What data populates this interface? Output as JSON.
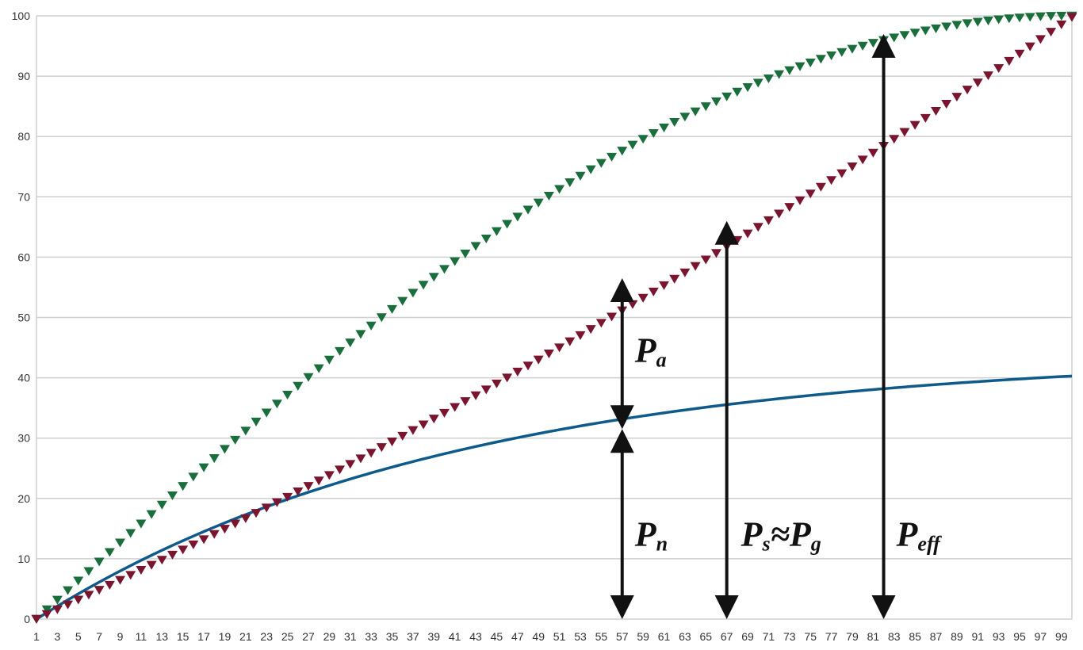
{
  "chart_data": {
    "type": "line",
    "x": [
      1,
      100
    ],
    "x_tick_labels": [
      "1",
      "3",
      "5",
      "7",
      "9",
      "11",
      "13",
      "15",
      "17",
      "19",
      "21",
      "23",
      "25",
      "27",
      "29",
      "31",
      "33",
      "35",
      "37",
      "39",
      "41",
      "43",
      "45",
      "47",
      "49",
      "51",
      "53",
      "55",
      "57",
      "59",
      "61",
      "63",
      "65",
      "67",
      "69",
      "71",
      "73",
      "75",
      "77",
      "79",
      "81",
      "83",
      "85",
      "87",
      "89",
      "91",
      "93",
      "95",
      "97",
      "99"
    ],
    "y_tick_labels": [
      "0",
      "10",
      "20",
      "30",
      "40",
      "50",
      "60",
      "70",
      "80",
      "90",
      "100"
    ],
    "xlim": [
      1,
      100
    ],
    "ylim": [
      0,
      100
    ],
    "grid": true,
    "series": [
      {
        "type": "scatter-triangle",
        "color": "#1a6e3c",
        "formula": "100*sin((x-1)*pi/198)",
        "x_range": [
          1,
          100
        ]
      },
      {
        "type": "scatter-triangle",
        "color": "#7a1530",
        "formula": "x-1 quadratic: ~0.79*(x-1)+0.0022*(x-1)^2",
        "x_range": [
          1,
          100
        ]
      },
      {
        "type": "line",
        "color": "#0e5a8a",
        "formula": "44*(1-exp(-(x-1)/40))",
        "x_range": [
          1,
          100
        ]
      }
    ],
    "annotations": [
      {
        "label": "P",
        "sub": "a",
        "x": 57,
        "y_from": 31.5,
        "y_to": 56.5
      },
      {
        "label": "P",
        "sub": "n",
        "x": 57,
        "y_from": 0,
        "y_to": 31.5
      },
      {
        "label": "P",
        "sub": "s",
        "suffix": "≈",
        "label2": "P",
        "sub2": "g",
        "x": 67,
        "y_from": 0,
        "y_to": 66
      },
      {
        "label": "P",
        "sub": "eff",
        "x": 82,
        "y_from": 0,
        "y_to": 97
      }
    ]
  }
}
